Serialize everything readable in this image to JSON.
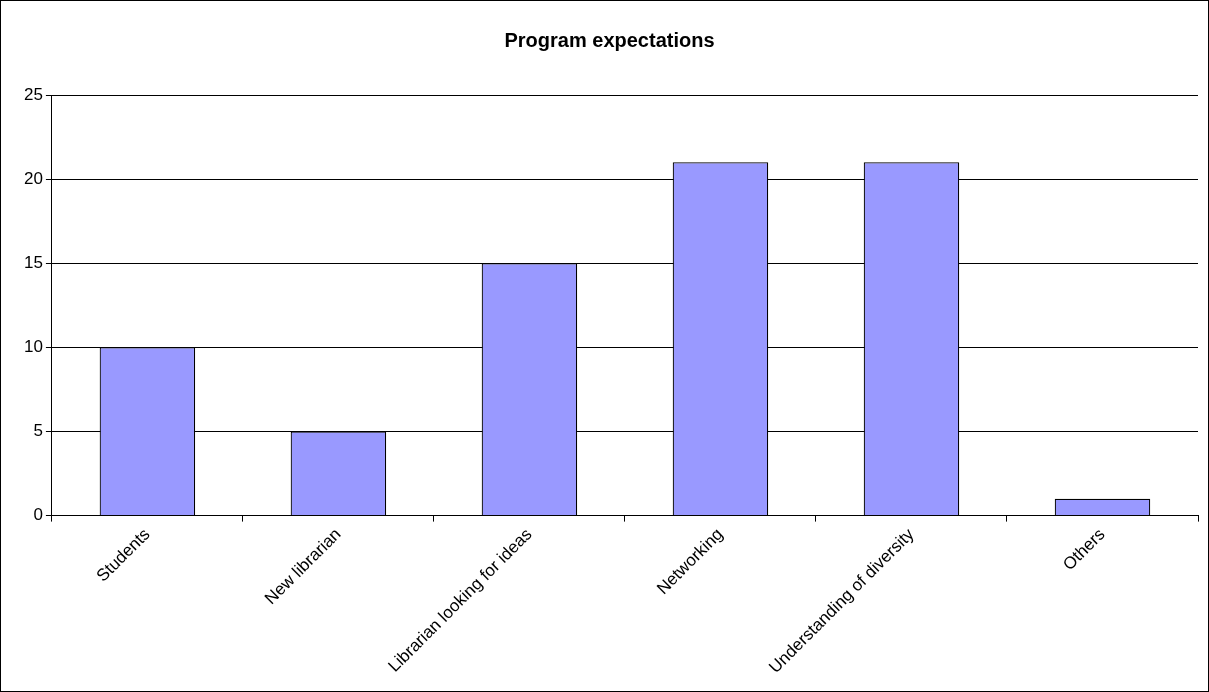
{
  "chart_data": {
    "type": "bar",
    "title": "Program expectations",
    "categories": [
      "Students",
      "New librarian",
      "Librarian looking for ideas",
      "Networking",
      "Understanding of diversity",
      "Others"
    ],
    "values": [
      10,
      5,
      15,
      21,
      21,
      1
    ],
    "color": "#9999ff",
    "ylim": [
      0,
      25
    ],
    "yticks": [
      0,
      5,
      10,
      15,
      20,
      25
    ],
    "grid": "y",
    "legend": false
  }
}
